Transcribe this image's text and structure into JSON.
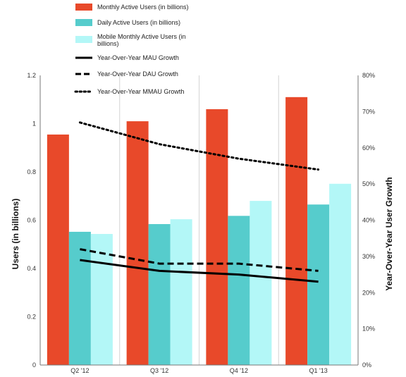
{
  "chart_data": {
    "type": "bar",
    "categories": [
      "Q2 '12",
      "Q3 '12",
      "Q4 '12",
      "Q1 '13"
    ],
    "series": [
      {
        "name": "Monthly Active Users (in billions)",
        "kind": "bar",
        "axis": "left",
        "color": "#E8492A",
        "values": [
          0.955,
          1.01,
          1.06,
          1.11
        ]
      },
      {
        "name": "Daily Active Users (in billions)",
        "kind": "bar",
        "axis": "left",
        "color": "#56CCCC",
        "values": [
          0.552,
          0.584,
          0.618,
          0.665
        ]
      },
      {
        "name": "Mobile Monthly Active Users (in billions)",
        "kind": "bar",
        "axis": "left",
        "color": "#B3F7F7",
        "values": [
          0.543,
          0.604,
          0.68,
          0.751
        ]
      },
      {
        "name": "Year-Over-Year MAU Growth",
        "kind": "line",
        "style": "solid",
        "axis": "right",
        "color": "#000000",
        "values": [
          0.29,
          0.26,
          0.25,
          0.23
        ]
      },
      {
        "name": "Year-Over-Year DAU Growth",
        "kind": "line",
        "style": "dashed",
        "axis": "right",
        "color": "#000000",
        "values": [
          0.32,
          0.28,
          0.28,
          0.26
        ]
      },
      {
        "name": "Year-Over-Year MMAU Growth",
        "kind": "line",
        "style": "dotted",
        "axis": "right",
        "color": "#000000",
        "values": [
          0.67,
          0.61,
          0.57,
          0.54
        ]
      }
    ],
    "ylabel": "Users (in billions)",
    "y2label": "Year-Over-Year User Growth",
    "ylim": [
      0,
      1.2
    ],
    "y2lim": [
      0,
      0.8
    ],
    "yticks": [
      "0",
      "0.2",
      "0.4",
      "0.6",
      "0.8",
      "1",
      "1.2"
    ],
    "y2ticks": [
      "0%",
      "10%",
      "20%",
      "30%",
      "40%",
      "50%",
      "60%",
      "70%",
      "80%"
    ],
    "grid": true,
    "grid_axis": "x",
    "legend_position": "top"
  }
}
